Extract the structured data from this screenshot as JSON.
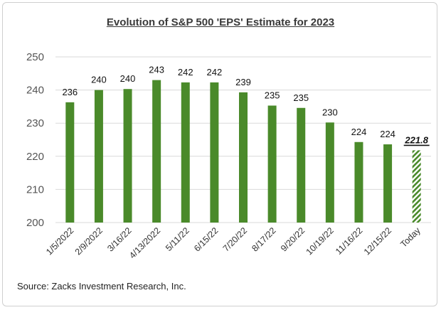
{
  "colors": {
    "bar": "#4a8a2a",
    "hatch": "#4a8a2a",
    "grid": "#d9d9d9"
  },
  "chart_data": {
    "type": "bar",
    "title": "Evolution of S&P 500 'EPS' Estimate for 2023",
    "source": "Source: Zacks Investment Research, Inc.",
    "categories": [
      "1/5/2022",
      "2/9/2022",
      "3/16/22",
      "4/13/2022",
      "5/11/22",
      "6/15/22",
      "7/20/22",
      "8/17/22",
      "9/20/22",
      "10/19/22",
      "11/16/22",
      "12/15/22",
      "Today"
    ],
    "values": [
      236.3,
      240.0,
      240.3,
      243.0,
      242.3,
      242.3,
      239.3,
      235.3,
      234.6,
      230.2,
      224.3,
      223.6,
      221.8
    ],
    "data_labels": [
      "236",
      "240",
      "240",
      "243",
      "242",
      "242",
      "239",
      "235",
      "235",
      "230",
      "224",
      "224",
      "221.8"
    ],
    "highlight_last": true,
    "ylim": [
      200,
      250
    ],
    "yticks": [
      200,
      210,
      220,
      230,
      240,
      250
    ],
    "grid": true,
    "legend": "none"
  }
}
